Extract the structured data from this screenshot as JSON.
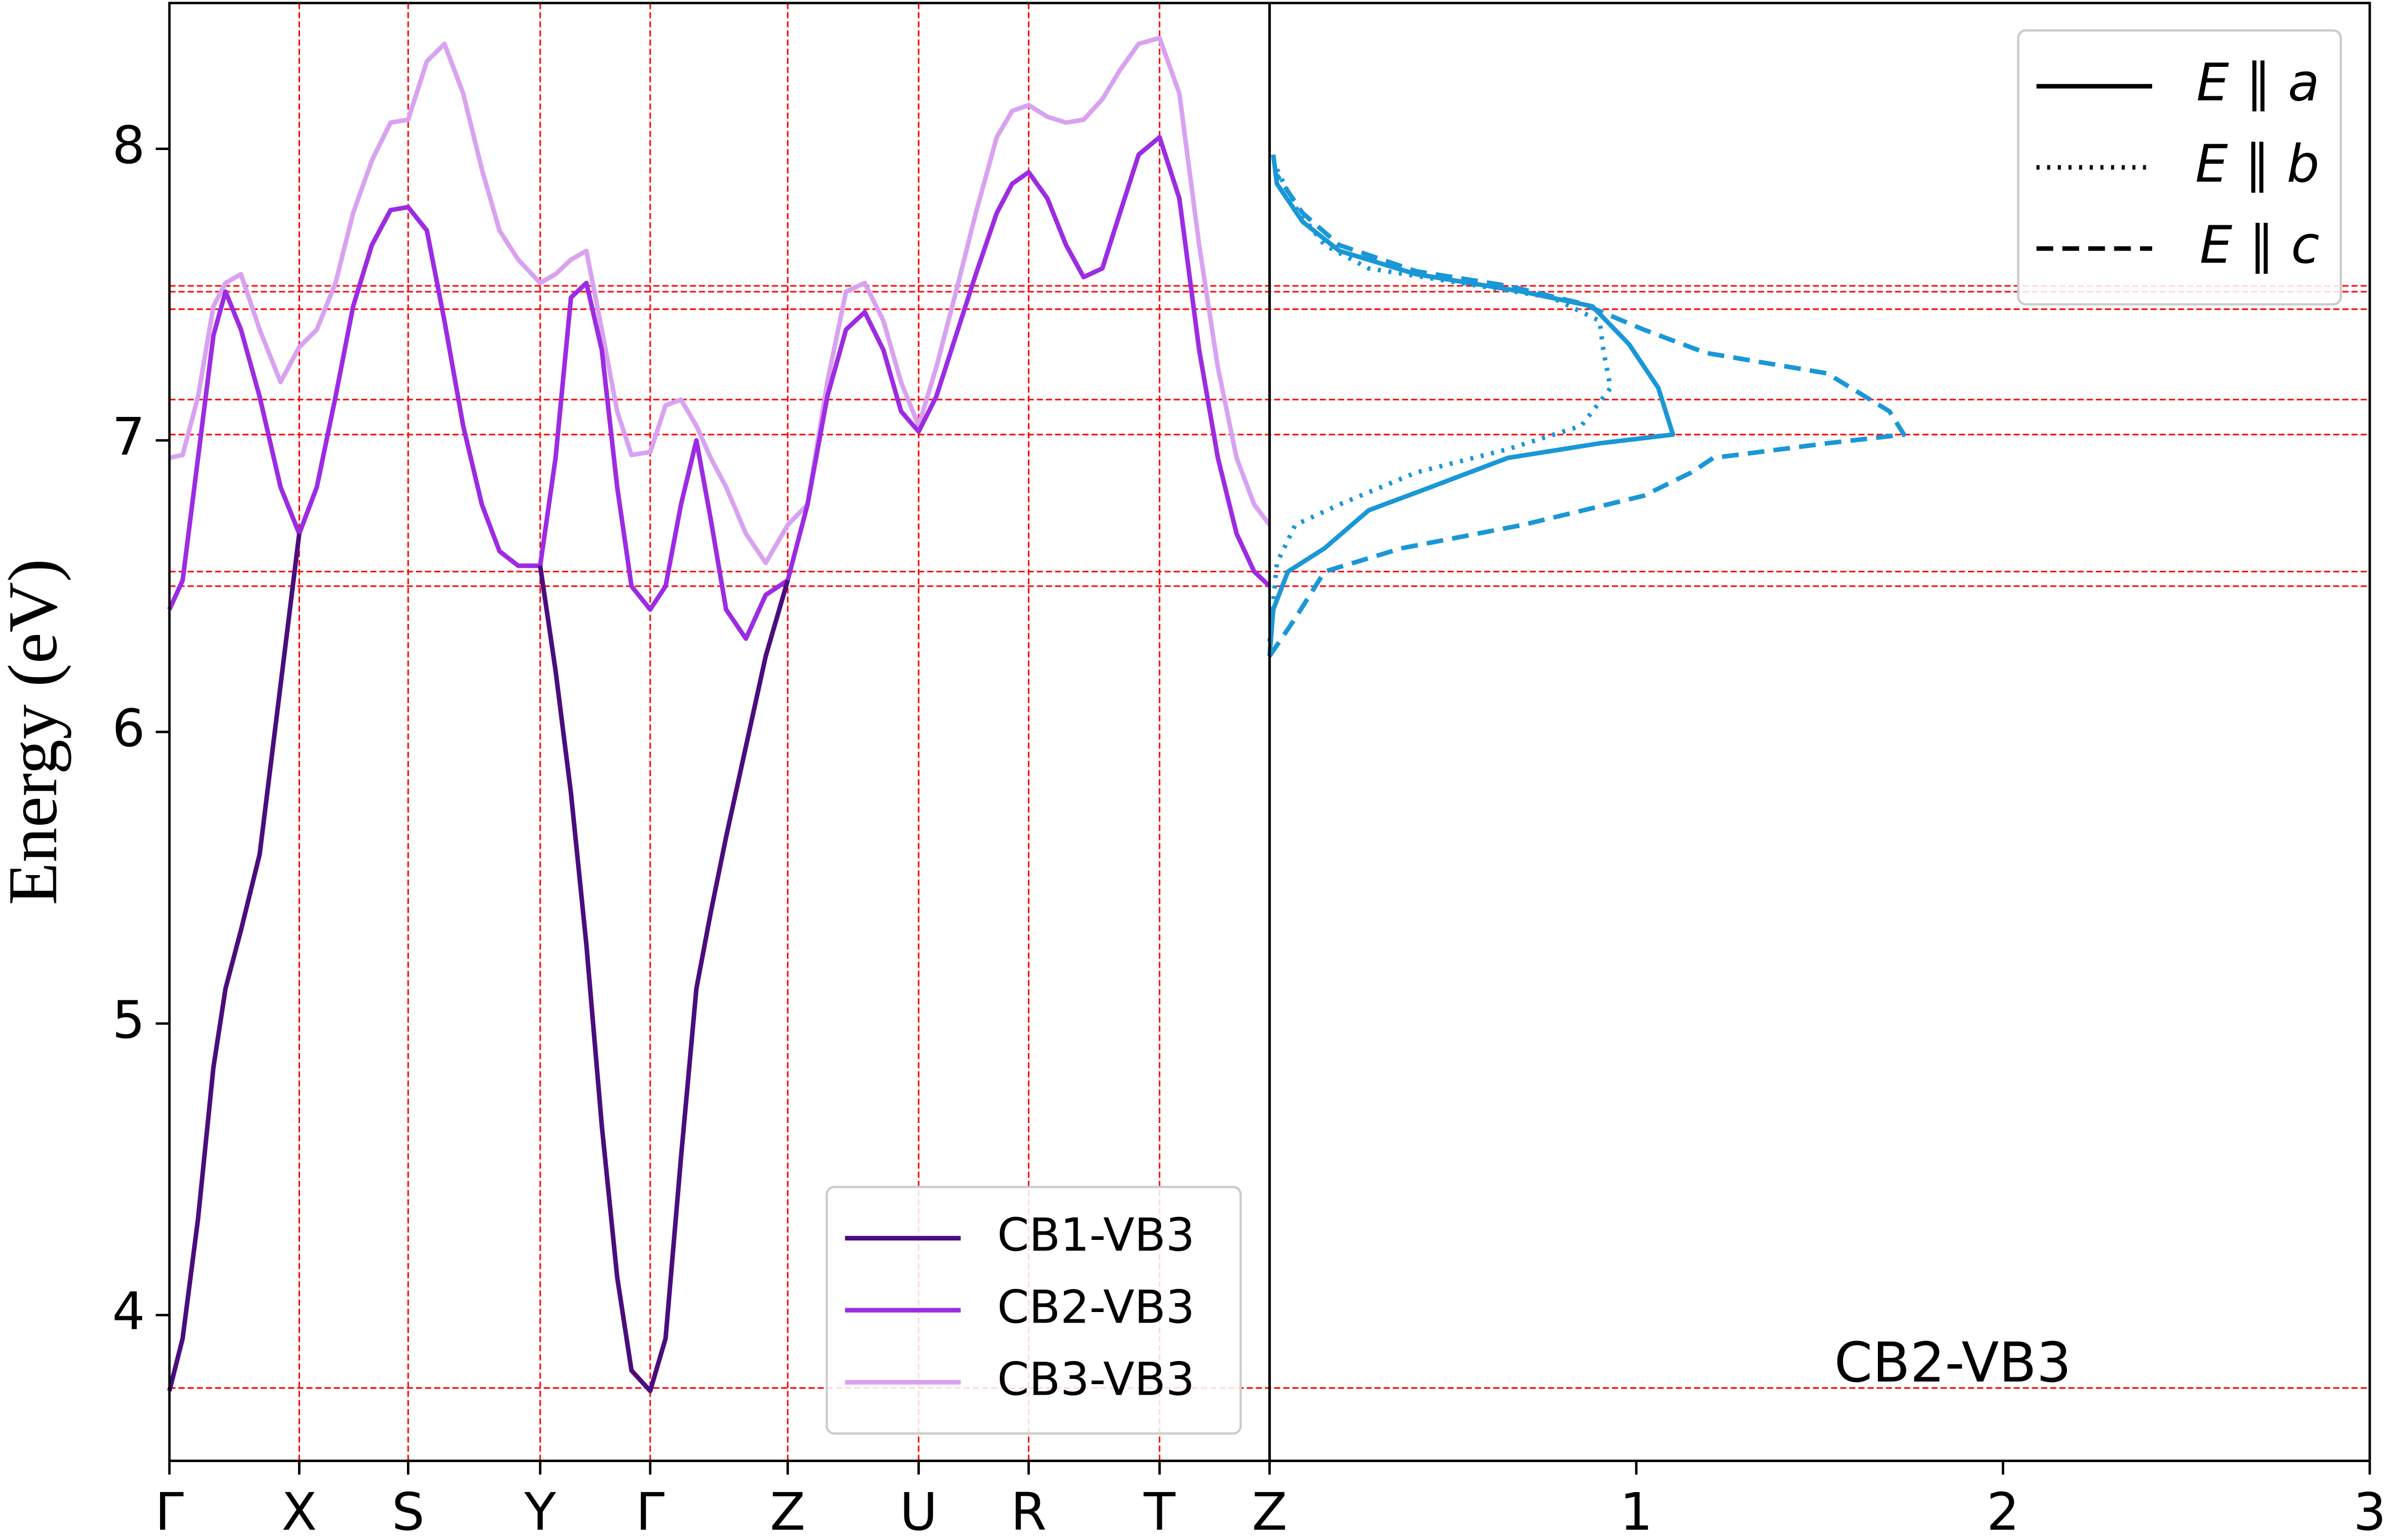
{
  "chart_data": [
    {
      "type": "line",
      "ylabel": "Energy (eV)",
      "x": [
        0,
        0.012,
        0.026,
        0.04,
        0.051,
        0.065,
        0.082,
        0.101,
        0.118,
        0.134,
        0.151,
        0.167,
        0.184,
        0.201,
        0.217,
        0.234,
        0.25,
        0.267,
        0.284,
        0.3,
        0.317,
        0.337,
        0.351,
        0.365,
        0.379,
        0.393,
        0.407,
        0.42,
        0.437,
        0.451,
        0.465,
        0.479,
        0.492,
        0.506,
        0.524,
        0.542,
        0.562,
        0.58,
        0.598,
        0.615,
        0.632,
        0.649,
        0.665,
        0.681,
        0.697,
        0.715,
        0.733,
        0.752,
        0.766,
        0.781,
        0.798,
        0.815,
        0.831,
        0.848,
        0.864,
        0.881,
        0.9,
        0.918,
        0.936,
        0.953,
        0.97,
        0.986,
        1
      ],
      "xlim": [
        0,
        1
      ],
      "xticks": [
        {
          "value": 0,
          "label": "Γ"
        },
        {
          "value": 0.118,
          "label": "X"
        },
        {
          "value": 0.217,
          "label": "S"
        },
        {
          "value": 0.337,
          "label": "Y"
        },
        {
          "value": 0.437,
          "label": "Γ"
        },
        {
          "value": 0.562,
          "label": "Z"
        },
        {
          "value": 0.681,
          "label": "U"
        },
        {
          "value": 0.781,
          "label": "R"
        },
        {
          "value": 0.9,
          "label": "T"
        },
        {
          "value": 1,
          "label": "Z"
        }
      ],
      "ylim": [
        3.5,
        8.5
      ],
      "yticks": [
        4,
        5,
        6,
        7,
        8
      ],
      "grid": true,
      "grid_color": "#ff0000",
      "hlines": [
        7.53,
        7.51,
        7.45,
        7.14,
        7.02,
        6.55,
        6.5,
        3.75
      ],
      "legend": "lower right",
      "series": [
        {
          "name": "CB1-VB3",
          "color": "#4b0c7e",
          "values": [
            3.74,
            3.92,
            4.33,
            4.85,
            5.12,
            5.32,
            5.58,
            6.16,
            6.68,
            null,
            null,
            null,
            null,
            null,
            null,
            null,
            null,
            null,
            null,
            null,
            null,
            6.57,
            6.21,
            5.79,
            5.27,
            4.65,
            4.13,
            3.81,
            3.74,
            3.92,
            4.54,
            5.12,
            5.38,
            5.64,
            5.95,
            6.26,
            6.52,
            null,
            null,
            null,
            null,
            null,
            null,
            null,
            null,
            null,
            null,
            null,
            null,
            null,
            null,
            null,
            null,
            null,
            null,
            null,
            null,
            null,
            null,
            null,
            null,
            null,
            null
          ]
        },
        {
          "name": "CB2-VB3",
          "color": "#9c2be2",
          "values": [
            6.42,
            6.52,
            6.94,
            7.36,
            7.51,
            7.38,
            7.15,
            6.84,
            6.68,
            6.84,
            7.15,
            7.46,
            7.67,
            7.79,
            7.8,
            7.72,
            7.41,
            7.05,
            6.78,
            6.62,
            6.57,
            6.57,
            6.94,
            7.49,
            7.54,
            7.31,
            6.84,
            6.5,
            6.42,
            6.5,
            6.78,
            7.0,
            6.73,
            6.42,
            6.32,
            6.47,
            6.52,
            6.78,
            7.15,
            7.38,
            7.44,
            7.31,
            7.1,
            7.03,
            7.15,
            7.36,
            7.57,
            7.78,
            7.88,
            7.92,
            7.83,
            7.67,
            7.56,
            7.59,
            7.78,
            7.98,
            8.04,
            7.83,
            7.31,
            6.94,
            6.68,
            6.55,
            6.5
          ]
        },
        {
          "name": "CB3-VB3",
          "color": "#d8a2f0",
          "values": [
            6.94,
            6.95,
            7.15,
            7.46,
            7.54,
            7.57,
            7.38,
            7.2,
            7.32,
            7.38,
            7.54,
            7.78,
            7.96,
            8.09,
            8.1,
            8.3,
            8.36,
            8.19,
            7.93,
            7.72,
            7.62,
            7.54,
            7.57,
            7.62,
            7.65,
            7.38,
            7.1,
            6.95,
            6.96,
            7.12,
            7.14,
            7.05,
            6.94,
            6.84,
            6.68,
            6.58,
            6.71,
            6.78,
            7.2,
            7.51,
            7.54,
            7.41,
            7.2,
            7.05,
            7.25,
            7.51,
            7.78,
            8.04,
            8.13,
            8.15,
            8.11,
            8.09,
            8.1,
            8.17,
            8.27,
            8.36,
            8.38,
            8.19,
            7.67,
            7.25,
            6.94,
            6.78,
            6.71
          ]
        }
      ]
    },
    {
      "type": "line",
      "xlim": [
        0,
        3
      ],
      "xticks": [
        1,
        2,
        3
      ],
      "ylim": [
        3.5,
        8.5
      ],
      "legend": "upper right",
      "annotation": {
        "text": "CB2-VB3",
        "color": "#1a97d6"
      },
      "series": [
        {
          "name": "E ∥ a",
          "color": "#1a97d6",
          "linestyle": "solid",
          "x": [
            0,
            0.01,
            0.05,
            0.15,
            0.27,
            0.44,
            0.65,
            0.9,
            1.1,
            1.08,
            1.06,
            0.98,
            0.88,
            0.69,
            0.4,
            0.19,
            0.09,
            0.02,
            0.01
          ],
          "values": [
            6.26,
            6.42,
            6.55,
            6.63,
            6.76,
            6.84,
            6.94,
            6.99,
            7.02,
            7.1,
            7.18,
            7.33,
            7.46,
            7.51,
            7.57,
            7.65,
            7.75,
            7.88,
            7.98
          ]
        },
        {
          "name": "E ∥ b",
          "color": "#1a97d6",
          "linestyle": "dotted",
          "x": [
            0,
            0.02,
            0.07,
            0.19,
            0.4,
            0.65,
            0.85,
            0.93,
            0.91,
            0.9,
            0.77,
            0.52,
            0.27,
            0.15,
            0.07,
            0.02
          ],
          "values": [
            6.31,
            6.58,
            6.71,
            6.78,
            6.89,
            6.97,
            7.05,
            7.18,
            7.31,
            7.41,
            7.49,
            7.54,
            7.59,
            7.67,
            7.8,
            7.93
          ]
        },
        {
          "name": "E ∥ c",
          "color": "#1a97d6",
          "linestyle": "dashed",
          "x": [
            0,
            0.07,
            0.15,
            0.36,
            0.69,
            1.02,
            1.15,
            1.21,
            1.52,
            1.73,
            1.69,
            1.52,
            1.19,
            1.02,
            0.85,
            0.65,
            0.4,
            0.19,
            0.09,
            0.02
          ],
          "values": [
            6.26,
            6.39,
            6.55,
            6.63,
            6.71,
            6.81,
            6.89,
            6.94,
            6.99,
            7.02,
            7.1,
            7.23,
            7.3,
            7.38,
            7.47,
            7.53,
            7.58,
            7.67,
            7.78,
            7.91
          ]
        }
      ]
    }
  ]
}
